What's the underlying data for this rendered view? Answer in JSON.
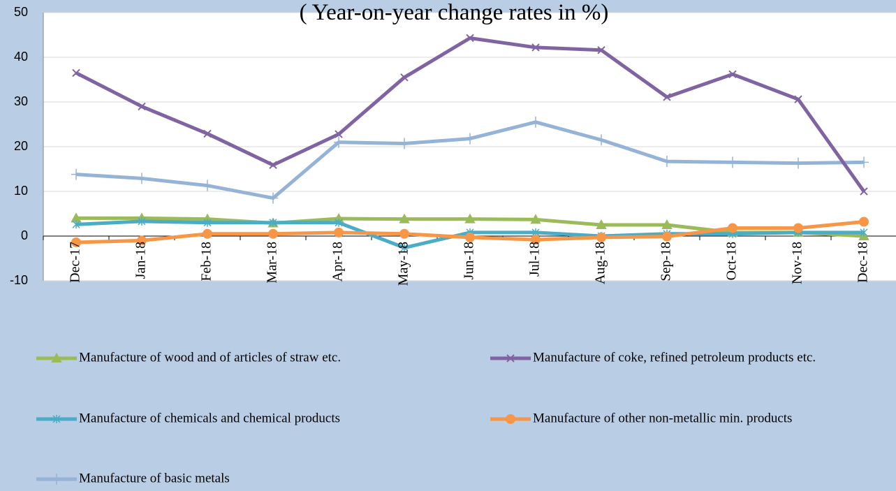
{
  "chart_data": {
    "type": "line",
    "title": "( Year-on-year change rates in %)",
    "categories": [
      "Dec-17",
      "Jan-18",
      "Feb-18",
      "Mar-18",
      "Apr-18",
      "May-18",
      "Jun-18",
      "Jul-18",
      "Aug-18",
      "Sep-18",
      "Oct-18",
      "Nov-18",
      "Dec-18"
    ],
    "ylim": [
      -10,
      50
    ],
    "yticks": [
      -10,
      0,
      10,
      20,
      30,
      40,
      50
    ],
    "grid": true,
    "series": [
      {
        "name": "Manufacture of wood and of articles of straw etc.",
        "color": "#9bbb59",
        "marker": "triangle",
        "values": [
          4,
          4,
          3.8,
          2.9,
          3.9,
          3.8,
          3.8,
          3.7,
          2.5,
          2.5,
          0.8,
          0.8,
          0
        ]
      },
      {
        "name": "Manufacture of coke, refined petroleum products etc.",
        "color": "#8064a2",
        "marker": "x",
        "values": [
          36.5,
          29,
          22.9,
          15.9,
          22.8,
          35.5,
          44.3,
          42.2,
          41.6,
          31.1,
          36.2,
          30.6,
          10
        ]
      },
      {
        "name": "Manufacture of chemicals and chemical products",
        "color": "#4bacc6",
        "marker": "star",
        "values": [
          2.6,
          3.3,
          3,
          3,
          3,
          -2.6,
          0.8,
          0.8,
          0,
          0.5,
          0.5,
          0.8,
          0.8
        ]
      },
      {
        "name": "Manufacture of other non-metallic min. products",
        "color": "#f79646",
        "marker": "circle",
        "values": [
          -1.4,
          -1,
          0.5,
          0.5,
          0.8,
          0.5,
          -0.3,
          -0.8,
          -0.3,
          -0.1,
          1.8,
          1.8,
          3.2
        ]
      },
      {
        "name": "Manufacture of basic metals",
        "color": "#95b3d7",
        "marker": "plus",
        "values": [
          13.8,
          12.9,
          11.3,
          8.5,
          21,
          20.7,
          21.8,
          25.5,
          21.5,
          16.7,
          16.5,
          16.3,
          16.5
        ]
      }
    ]
  }
}
